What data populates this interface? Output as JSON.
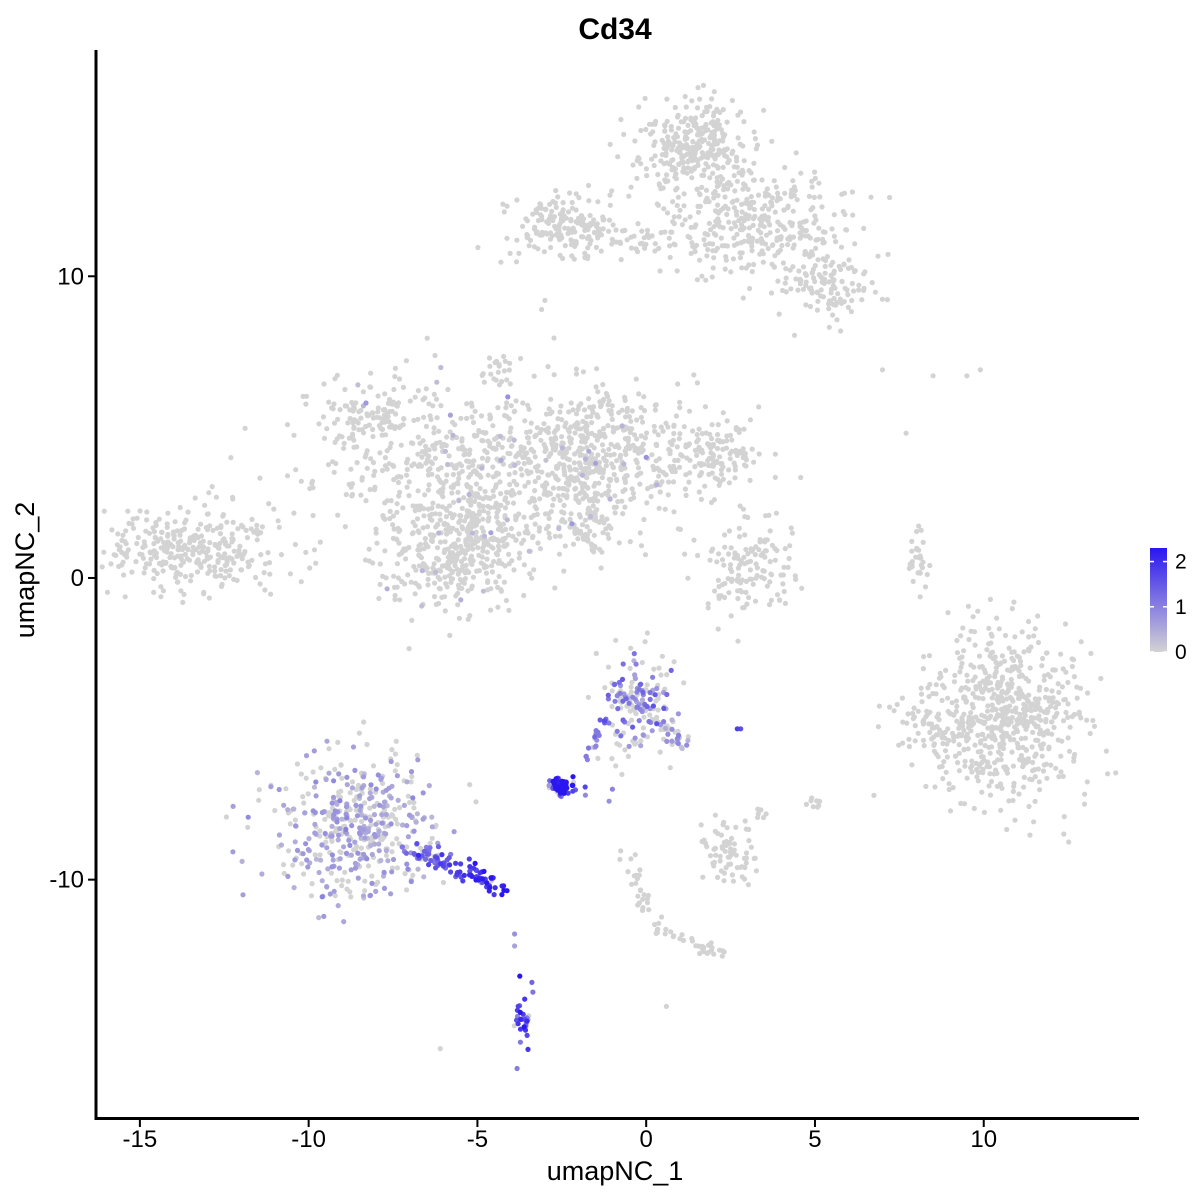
{
  "chart_data": {
    "type": "scatter",
    "title": "Cd34",
    "xlabel": "umapNC_1",
    "ylabel": "umapNC_2",
    "xlim": [
      -16.3,
      14.6
    ],
    "ylim": [
      -17.9,
      17.5
    ],
    "x_ticks": [
      -15,
      -10,
      -5,
      0,
      5,
      10
    ],
    "y_ticks": [
      -10,
      0,
      10
    ],
    "x_tick_labels": [
      "-15",
      "-10",
      "-5",
      "0",
      "5",
      "10"
    ],
    "y_tick_labels": [
      "-10",
      "0",
      "10"
    ],
    "grid": false,
    "colors": {
      "low": "#d3d3d3",
      "high": "#2a16f0"
    },
    "legend": {
      "placement": "right",
      "min": 0,
      "max": 2.3,
      "ticks": [
        0,
        1,
        2
      ],
      "tick_labels": [
        "0",
        "1",
        "2"
      ]
    },
    "clusters": [
      {
        "cx": -13.4,
        "cy": 1.0,
        "sx": 1.3,
        "sy": 0.7,
        "n": 320,
        "expr": 0,
        "expr_p": 0
      },
      {
        "cx": -4.5,
        "cy": 3.5,
        "sx": 2.6,
        "sy": 1.4,
        "n": 700,
        "expr": 0.1,
        "expr_p": 0.03
      },
      {
        "cx": -8.3,
        "cy": 5.4,
        "sx": 0.8,
        "sy": 0.6,
        "n": 100,
        "expr": 0.1,
        "expr_p": 0.05
      },
      {
        "cx": -1.3,
        "cy": 4.2,
        "sx": 1.6,
        "sy": 1.0,
        "n": 320,
        "expr": 0.1,
        "expr_p": 0.03
      },
      {
        "cx": 1.9,
        "cy": 4.0,
        "sx": 0.8,
        "sy": 0.6,
        "n": 130,
        "expr": 0,
        "expr_p": 0
      },
      {
        "cx": -5.6,
        "cy": 0.8,
        "sx": 1.1,
        "sy": 1.0,
        "n": 350,
        "expr": 0.1,
        "expr_p": 0.02
      },
      {
        "cx": -4.4,
        "cy": 6.8,
        "sx": 0.3,
        "sy": 0.3,
        "n": 20,
        "expr": 0,
        "expr_p": 0
      },
      {
        "cx": 1.4,
        "cy": 14.2,
        "sx": 0.8,
        "sy": 0.8,
        "n": 320,
        "expr": 0,
        "expr_p": 0
      },
      {
        "cx": 3.2,
        "cy": 11.8,
        "sx": 1.4,
        "sy": 0.9,
        "n": 320,
        "expr": 0,
        "expr_p": 0
      },
      {
        "cx": 5.4,
        "cy": 9.7,
        "sx": 0.6,
        "sy": 0.6,
        "n": 120,
        "expr": 0,
        "expr_p": 0
      },
      {
        "cx": -2.4,
        "cy": 11.7,
        "sx": 0.8,
        "sy": 0.5,
        "n": 160,
        "expr": 0,
        "expr_p": 0
      },
      {
        "cx": 0.3,
        "cy": 11.2,
        "sx": 1.2,
        "sy": 0.3,
        "n": 60,
        "expr": 0,
        "expr_p": 0
      },
      {
        "cx": 3.0,
        "cy": 0.4,
        "sx": 0.7,
        "sy": 0.8,
        "n": 140,
        "expr": 0,
        "expr_p": 0
      },
      {
        "cx": 8.1,
        "cy": 0.5,
        "sx": 0.2,
        "sy": 0.5,
        "n": 30,
        "expr": 0,
        "expr_p": 0
      },
      {
        "cx": 10.6,
        "cy": -4.6,
        "sx": 1.2,
        "sy": 1.4,
        "n": 650,
        "expr": 0,
        "expr_p": 0
      },
      {
        "cx": 8.3,
        "cy": -4.8,
        "sx": 0.4,
        "sy": 0.5,
        "n": 30,
        "expr": 0,
        "expr_p": 0
      },
      {
        "cx": -8.6,
        "cy": -8.3,
        "sx": 1.2,
        "sy": 1.2,
        "n": 450,
        "expr": 0.4,
        "expr_p": 0.5
      },
      {
        "cx": -0.3,
        "cy": -4.0,
        "sx": 0.6,
        "sy": 0.8,
        "n": 170,
        "expr": 0.8,
        "expr_p": 0.45
      },
      {
        "cx": -2.5,
        "cy": -6.9,
        "sx": 0.2,
        "sy": 0.15,
        "n": 60,
        "expr": 1.9,
        "expr_p": 0.9
      },
      {
        "cx": 2.5,
        "cy": -9.2,
        "sx": 0.4,
        "sy": 0.5,
        "n": 70,
        "expr": 0,
        "expr_p": 0
      },
      {
        "cx": -3.6,
        "cy": -14.6,
        "sx": 0.15,
        "sy": 0.5,
        "n": 30,
        "expr": 1.3,
        "expr_p": 0.9
      }
    ],
    "trails": [
      {
        "x0": -7.1,
        "y0": -8.8,
        "x1": -4.1,
        "y1": -10.4,
        "n": 100,
        "spread": 0.18,
        "expr": 1.2,
        "expr_end": 2.2,
        "expr_p": 0.95
      },
      {
        "x0": -1.2,
        "y0": -4.6,
        "x1": -1.8,
        "y1": -6.2,
        "n": 18,
        "spread": 0.08,
        "expr": 1.2,
        "expr_end": 1.2,
        "expr_p": 0.85
      },
      {
        "x0": 0.2,
        "y0": -4.5,
        "x1": 1.1,
        "y1": -5.5,
        "n": 30,
        "spread": 0.15,
        "expr": 0.6,
        "expr_end": 0.6,
        "expr_p": 0.4
      },
      {
        "x0": -2.0,
        "y0": 3.0,
        "x1": -1.2,
        "y1": 1.5,
        "n": 40,
        "spread": 0.25,
        "expr": 0,
        "expr_end": 0,
        "expr_p": 0
      },
      {
        "x0": -2.4,
        "y0": 1.9,
        "x1": -1.2,
        "y1": 0.8,
        "n": 30,
        "spread": 0.08,
        "expr": 0,
        "expr_end": 0,
        "expr_p": 0
      },
      {
        "x0": -0.6,
        "y0": -9.2,
        "x1": 0.4,
        "y1": -11.8,
        "n": 30,
        "spread": 0.15,
        "expr": 0,
        "expr_end": 0,
        "expr_p": 0
      },
      {
        "x0": 0.6,
        "y0": -11.7,
        "x1": 2.4,
        "y1": -12.6,
        "n": 30,
        "spread": 0.12,
        "expr": 0,
        "expr_end": 0,
        "expr_p": 0
      },
      {
        "x0": 3.3,
        "y0": -7.4,
        "x1": 3.4,
        "y1": -8.2,
        "n": 6,
        "spread": 0.1,
        "expr": 0,
        "expr_end": 0,
        "expr_p": 0
      },
      {
        "x0": 5.0,
        "y0": -7.2,
        "x1": 5.0,
        "y1": -7.6,
        "n": 8,
        "spread": 0.1,
        "expr": 0,
        "expr_end": 0,
        "expr_p": 0
      },
      {
        "x0": -1.3,
        "y0": 6.1,
        "x1": -1.1,
        "y1": 5.6,
        "n": 10,
        "spread": 0.1,
        "expr": 0,
        "expr_end": 0,
        "expr_p": 0
      }
    ],
    "points": [
      {
        "x": -3.9,
        "y": -11.8,
        "v": 0.8
      },
      {
        "x": -3.9,
        "y": -12.2,
        "v": 0.6
      },
      {
        "x": -1.8,
        "y": -7.2,
        "v": 0.9
      },
      {
        "x": -1.1,
        "y": -7.4,
        "v": 0.8
      },
      {
        "x": -1.0,
        "y": -7.0,
        "v": 1.0
      },
      {
        "x": 2.7,
        "y": -5.0,
        "v": 1.8
      },
      {
        "x": 2.8,
        "y": -5.0,
        "v": 1.6
      },
      {
        "x": -6.1,
        "y": -15.6,
        "v": 0
      },
      {
        "x": 0.6,
        "y": -14.2,
        "v": 0
      },
      {
        "x": 7.0,
        "y": 6.9,
        "v": 0
      },
      {
        "x": 8.5,
        "y": 6.7,
        "v": 0
      },
      {
        "x": 9.5,
        "y": 6.7,
        "v": 0
      },
      {
        "x": 9.9,
        "y": 6.9,
        "v": 0
      },
      {
        "x": 7.7,
        "y": 4.8,
        "v": 0
      },
      {
        "x": -3.1,
        "y": 8.9,
        "v": 0
      },
      {
        "x": -3.0,
        "y": 9.2,
        "v": 0
      },
      {
        "x": -8.3,
        "y": 5.8,
        "v": 0.7
      },
      {
        "x": -5.8,
        "y": 5.4,
        "v": 0.6
      },
      {
        "x": -4.1,
        "y": 6.0,
        "v": 0.8
      },
      {
        "x": -4.3,
        "y": 3.9,
        "v": 0.5
      },
      {
        "x": -4.6,
        "y": 1.5,
        "v": 0.6
      },
      {
        "x": -2.2,
        "y": 1.8,
        "v": 0.7
      },
      {
        "x": -1.5,
        "y": 3.8,
        "v": 0.6
      },
      {
        "x": -1.7,
        "y": 4.2,
        "v": 0.5
      },
      {
        "x": 0.0,
        "y": 4.0,
        "v": 0.8
      }
    ]
  }
}
